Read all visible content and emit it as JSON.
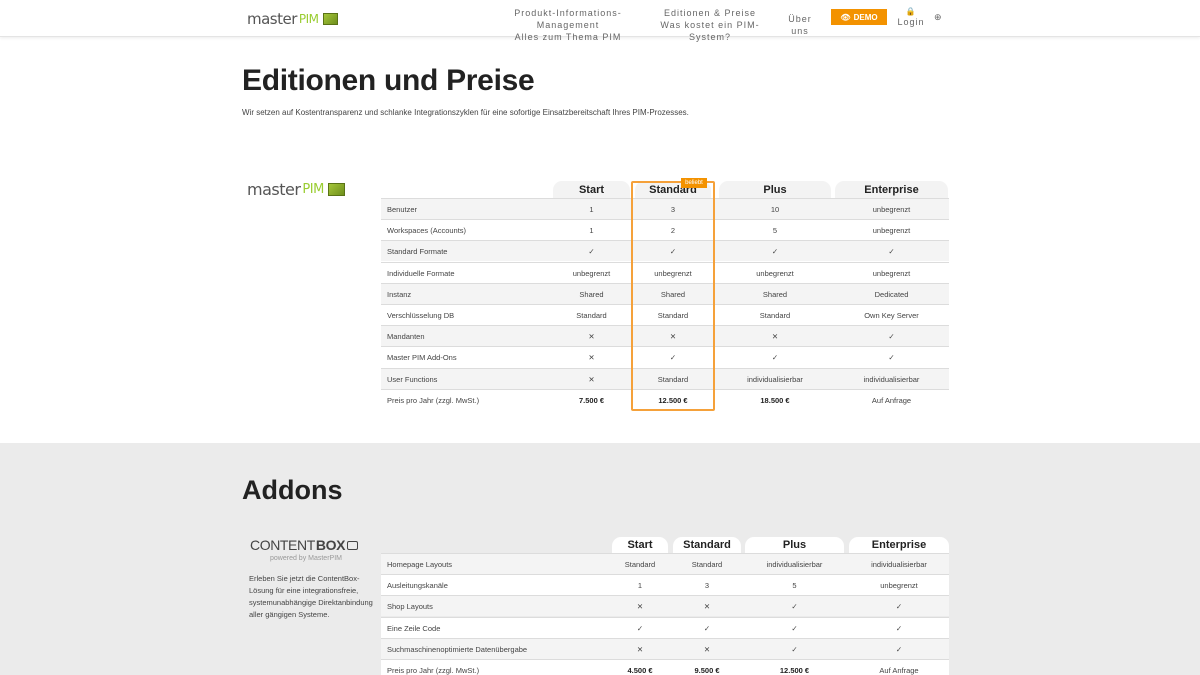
{
  "header": {
    "logo_word": "master",
    "logo_pim": "PIM",
    "nav": [
      {
        "line1": "Produkt-Informations-Management",
        "line2": "Alles zum Thema PIM"
      },
      {
        "line1": "Editionen & Preise",
        "line2": "Was kostet ein PIM-System?"
      },
      {
        "line1": "Über uns"
      }
    ],
    "demo_icon": "👁",
    "demo_label": "DEMO",
    "login_icon": "🔒",
    "login_label": "Login",
    "globe_icon": "⊕"
  },
  "pricing": {
    "title": "Editionen und Preise",
    "intro": "Wir setzen auf Kostentransparenz und schlanke Integrationszyklen für eine sofortige Einsatzbereitschaft Ihres PIM-Prozesses.",
    "logo_word": "master",
    "logo_pim": "PIM",
    "badge": "beliebt",
    "columns": [
      "Start",
      "Standard",
      "Plus",
      "Enterprise"
    ],
    "rows": [
      {
        "label": "Benutzer",
        "values": [
          "1",
          "3",
          "10",
          "unbegrenzt"
        ]
      },
      {
        "label": "Workspaces (Accounts)",
        "values": [
          "1",
          "2",
          "5",
          "unbegrenzt"
        ]
      },
      {
        "label": "Standard Formate",
        "values": [
          "✓",
          "✓",
          "✓",
          "✓"
        ]
      },
      {
        "label": "Individuelle Formate",
        "values": [
          "unbegrenzt",
          "unbegrenzt",
          "unbegrenzt",
          "unbegrenzt"
        ]
      },
      {
        "label": "Instanz",
        "values": [
          "Shared",
          "Shared",
          "Shared",
          "Dedicated"
        ]
      },
      {
        "label": "Verschlüsselung DB",
        "values": [
          "Standard",
          "Standard",
          "Standard",
          "Own Key Server"
        ]
      },
      {
        "label": "Mandanten",
        "values": [
          "✕",
          "✕",
          "✕",
          "✓"
        ]
      },
      {
        "label": "Master PIM Add-Ons",
        "values": [
          "✕",
          "✓",
          "✓",
          "✓"
        ]
      },
      {
        "label": "User Functions",
        "values": [
          "✕",
          "Standard",
          "individualisierbar",
          "individualisierbar"
        ]
      },
      {
        "label": "Preis pro Jahr (zzgl. MwSt.)",
        "values": [
          "7.500 €",
          "12.500 €",
          "18.500 €",
          "Auf Anfrage"
        ]
      }
    ]
  },
  "addons": {
    "title": "Addons",
    "cb_title_light": "CONTENT",
    "cb_title_bold": "BOX",
    "cb_sub": "powered by MasterPIM",
    "cb_text": "Erleben Sie jetzt die ContentBox-Lösung für eine integrationsfreie, systemunabhängige Direktanbindung aller gängigen Systeme.",
    "columns": [
      "Start",
      "Standard",
      "Plus",
      "Enterprise"
    ],
    "rows": [
      {
        "label": "Homepage Layouts",
        "values": [
          "Standard",
          "Standard",
          "individualisierbar",
          "individualisierbar"
        ]
      },
      {
        "label": "Ausleitungskanäle",
        "values": [
          "1",
          "3",
          "5",
          "unbegrenzt"
        ]
      },
      {
        "label": "Shop Layouts",
        "values": [
          "✕",
          "✕",
          "✓",
          "✓"
        ]
      },
      {
        "label": "Eine Zeile Code",
        "values": [
          "✓",
          "✓",
          "✓",
          "✓"
        ]
      },
      {
        "label": "Suchmaschinenoptimierte Datenübergabe",
        "values": [
          "✕",
          "✕",
          "✓",
          "✓"
        ]
      },
      {
        "label": "Preis pro Jahr (zzgl. MwSt.)",
        "values": [
          "4.500 €",
          "9.500 €",
          "12.500 €",
          "Auf Anfrage"
        ]
      }
    ]
  },
  "colors": {
    "accent": "#f39200",
    "highlight_border": "#f5a13a",
    "logo_green": "#9acd32"
  }
}
